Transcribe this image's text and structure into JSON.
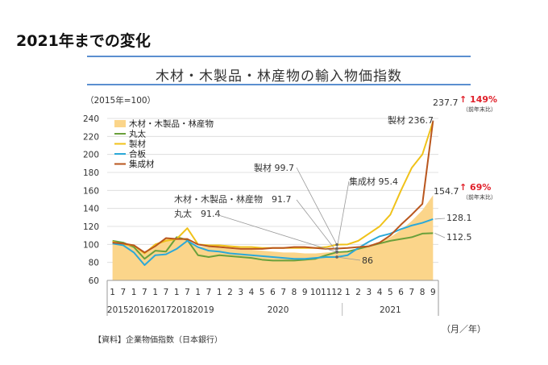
{
  "page_heading": "2021年までの変化",
  "source_note": "【資料】企業物価指数（日本銀行）",
  "chart_data": {
    "type": "line",
    "title": "木材・木製品・林産物の輸入物価指数",
    "base_note": "（2015年=100）",
    "x_unit_label": "（月／年）",
    "ylim": [
      60,
      240
    ],
    "yticks": [
      60,
      80,
      100,
      120,
      140,
      160,
      180,
      200,
      220,
      240
    ],
    "categories": [
      "1",
      "7",
      "1",
      "7",
      "1",
      "7",
      "1",
      "7",
      "1",
      "7",
      "1",
      "2",
      "3",
      "4",
      "5",
      "6",
      "7",
      "8",
      "9",
      "10",
      "11",
      "12",
      "1",
      "2",
      "3",
      "4",
      "5",
      "6",
      "7",
      "8",
      "9"
    ],
    "year_labels": [
      {
        "label": "2015",
        "start": 0,
        "end": 1
      },
      {
        "label": "2016",
        "start": 2,
        "end": 3
      },
      {
        "label": "2017",
        "start": 4,
        "end": 5
      },
      {
        "label": "2018",
        "start": 6,
        "end": 7
      },
      {
        "label": "2019",
        "start": 8,
        "end": 9
      },
      {
        "label": "2020",
        "start": 10,
        "end": 21
      },
      {
        "label": "2021",
        "start": 22,
        "end": 30
      }
    ],
    "series": [
      {
        "name": "木材・木製品・林産物",
        "kind": "area",
        "color": "#fbd58a",
        "values": [
          102,
          100,
          99,
          91,
          100,
          107,
          107,
          105,
          98,
          97,
          96,
          95,
          94,
          94,
          93,
          92,
          91,
          91,
          90,
          90,
          91,
          91.7,
          92,
          95,
          99,
          103,
          108,
          116,
          126,
          138,
          154.7
        ]
      },
      {
        "name": "丸太",
        "kind": "line",
        "color": "#6aa03b",
        "values": [
          104,
          102,
          97,
          84,
          93,
          92,
          108,
          105,
          88,
          86,
          88,
          87,
          86,
          85,
          83,
          82,
          82,
          82,
          83,
          84,
          88,
          91.4,
          92,
          95,
          98,
          101,
          104,
          106,
          108,
          112,
          112.5
        ]
      },
      {
        "name": "製材",
        "kind": "line",
        "color": "#f0c21a",
        "values": [
          103,
          100,
          99,
          90,
          100,
          104,
          106,
          118,
          100,
          99,
          99,
          98,
          97,
          97,
          96,
          96,
          96,
          96,
          96,
          96,
          97,
          99.7,
          100,
          104,
          112,
          120,
          133,
          160,
          185,
          200,
          236.7
        ]
      },
      {
        "name": "合板",
        "kind": "line",
        "color": "#2ba8d8",
        "values": [
          101,
          99,
          91,
          77,
          88,
          89,
          95,
          104,
          97,
          93,
          92,
          90,
          89,
          88,
          87,
          86,
          85,
          84,
          84,
          85,
          86,
          86,
          88,
          96,
          103,
          109,
          112,
          117,
          121,
          124,
          128.1
        ]
      },
      {
        "name": "集成材",
        "kind": "line",
        "color": "#b9561d",
        "values": [
          102,
          101,
          99,
          91,
          98,
          107,
          106,
          106,
          100,
          98,
          97,
          96,
          95,
          95,
          95,
          96,
          96,
          97,
          97,
          96,
          95,
          95.4,
          96,
          97,
          98,
          102,
          110,
          122,
          133,
          145,
          237.7
        ]
      }
    ],
    "annotations": [
      {
        "text": "237.7",
        "color": "#333"
      },
      {
        "text": "↑ 149%",
        "color": "#e0202a"
      },
      {
        "text": "（前年末比）",
        "color": "#333"
      },
      {
        "text": "製材 236.7",
        "color": "#333"
      },
      {
        "text": "154.7",
        "color": "#333"
      },
      {
        "text": "↑ 69%",
        "color": "#e0202a"
      },
      {
        "text": "（前年末比）",
        "color": "#333"
      },
      {
        "text": "128.1",
        "color": "#333"
      },
      {
        "text": "112.5",
        "color": "#333"
      },
      {
        "text": "製材 99.7",
        "color": "#333"
      },
      {
        "text": "集成材 95.4",
        "color": "#333"
      },
      {
        "text": "木材・木製品・林産物　91.7",
        "color": "#333"
      },
      {
        "text": "丸太　91.4",
        "color": "#333"
      },
      {
        "text": "86",
        "color": "#333"
      }
    ]
  }
}
